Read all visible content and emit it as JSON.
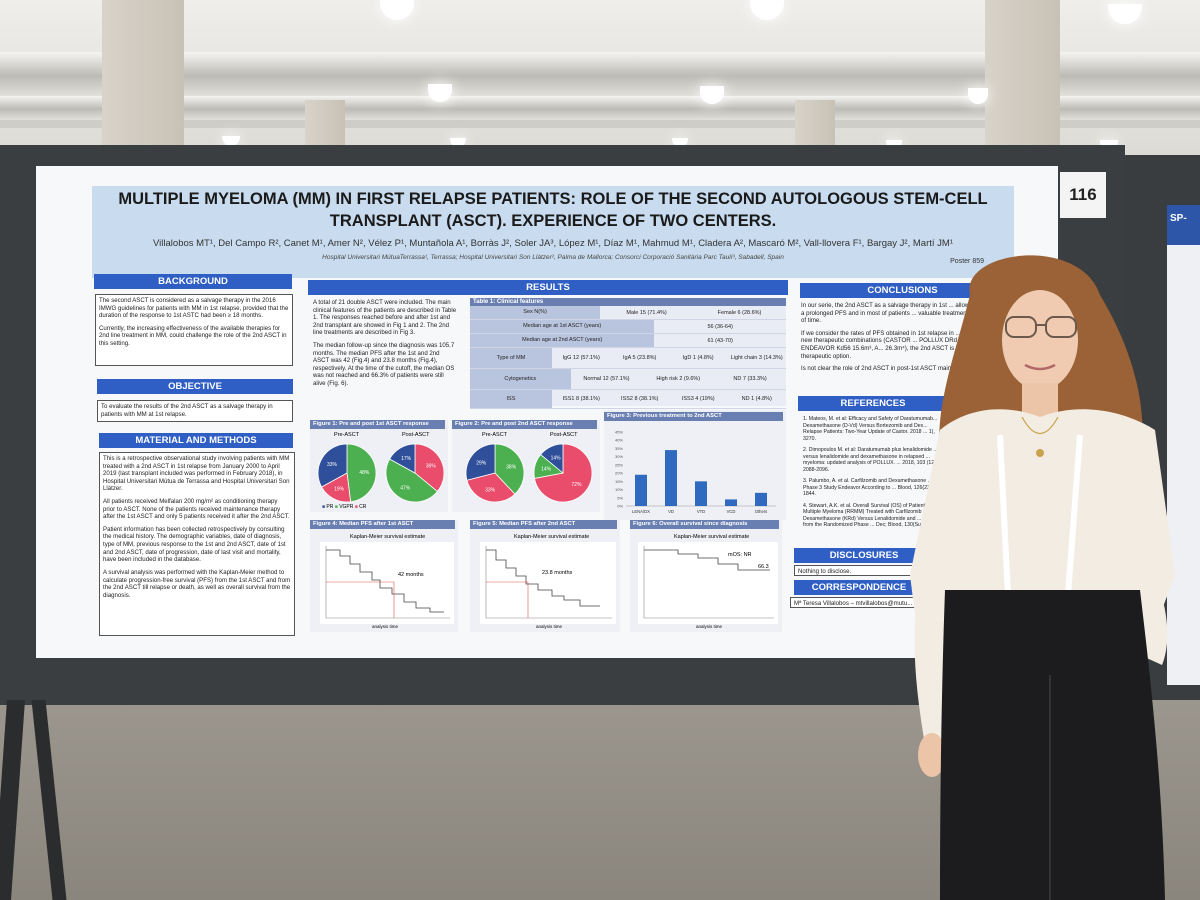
{
  "booth_number": "116",
  "neighbor_poster_code": "SP-",
  "poster": {
    "title_line1": "MULTIPLE MYELOMA (MM) IN FIRST RELAPSE PATIENTS: ROLE OF THE SECOND AUTOLOGOUS STEM-CELL",
    "title_line2": "TRANSPLANT (ASCT). EXPERIENCE OF TWO CENTERS.",
    "authors": "Villalobos MT¹, Del Campo R², Canet M¹, Amer N², Vélez P¹, Muntañola A¹, Borràs J², Soler JA³, López M¹, Díaz M¹, Mahmud M¹, Cladera A², Mascaró M², Vall-llovera F¹, Bargay J², Martí JM¹",
    "affiliations": "Hospital Universitari MútuaTerrassa¹, Terrassa; Hospital Universitari Son Llàtzer², Palma de Mallorca; Consorci Corporació Sanitària Parc Taulí³, Sabadell, Spain",
    "poster_number": "Poster 859",
    "sections": {
      "background": {
        "header": "BACKGROUND",
        "p1": "The second ASCT is considered as a salvage therapy in the 2016 IMWG guidelines for patients with MM in 1st relapse, provided that the duration of the response to 1st ASTC had been ≥ 18 months.",
        "p2": "Currently, the increasing effectiveness of the available therapies for 2nd line treatment in MM, could challenge the role of the 2nd ASCT in this setting."
      },
      "objective": {
        "header": "OBJECTIVE",
        "p1": "To evaluate the results of the 2nd ASCT as a salvage therapy in patients with MM at 1st relapse."
      },
      "methods": {
        "header": "MATERIAL AND METHODS",
        "p1": "This is a retrospective observational study involving patients with MM treated with a 2nd ASCT in 1st relapse from January 2000 to April 2019 (last transplant included was performed in February 2018), in Hospital Universitari Mútua de Terrassa and Hospital Universitari Son Llàtzer.",
        "p2": "All patients received Melfalan 200 mg/m² as conditioning therapy prior to ASCT. None of the patients received maintenance therapy after the 1st ASCT and only 5 patients received it after the 2nd ASCT.",
        "p3": "Patient information has been collected retrospectively by consulting the medical history. The demographic variables, date of diagnosis, type of MM, previous response to the 1st and 2nd ASCT, date of 1st and 2nd ASCT, date of progression, date of last visit and mortality, have been included in the database.",
        "p4": "A survival analysis was performed with the Kaplan-Meier method to calculate progression-free survival (PFS) from the 1st ASCT and from the 2nd ASCT till relapse or death, as well as overall survival from the diagnosis."
      },
      "results": {
        "header": "RESULTS",
        "p1": "A total of 21 double ASCT were included. The main clinical features of the patients are described in Table 1. The responses reached before and after 1st and 2nd transplant are showed in Fig 1 and 2. The 2nd line treatments are described in Fig 3.",
        "p2": "The median follow-up since the diagnosis was 105.7 months. The median PFS after the 1st and 2nd ASCT was 42 (Fig.4) and 23.8 months (Fig.4), respectively. At the time of the cutoff, the median OS was not reached and 66.3% of patients were still alive (Fig. 6)."
      },
      "conclusions": {
        "header": "CONCLUSIONS",
        "p1": "In our serie, the 2nd ASCT as a salvage therapy in 1st ... allows to achieve a prolonged PFS and in most of patients ... valuable treatment-free period of time.",
        "p2": "If we consider the rates of PFS obtained in 1st relapse in ... studies with the new therapeutic combinations (CASTOR ... POLLUX DRd 22.6m², ENDEAVOR Kd56 15.6m³, A... 26.3m⁴), the 2nd ASCT is still a good therapeutic option.",
        "p3": "Is not clear the role of 2nd ASCT in post-1st ASCT maintenance era."
      },
      "references": {
        "header": "REFERENCES",
        "items": [
          "1. Mateos, M. et al: Efficacy and Safety of Daratumumab... Dexamethasone (D-Vd) Versus Bortezomib and Dex... Relapse Patients: Two-Year Update of Castor. 2018 ... 1), 3270.",
          "2. Dimopoulos M. et al: Daratumumab plus lenalidomide ... versus lenalidomide and dexamethasone in relapsed ... myeloma: updated analysis of POLLUX. ... 2018, 103 (12) 2088-2096.",
          "3. Palumbo, A. et al. Carfilzomib and Dexamethasone ... Phase 3 Study Endeavor According to ... Blood, 126(23), 1844.",
          "4. Stewart, A.K. et al. Overall Survival (OS) of Patients ... Multiple Myeloma (RRMM) Treated with Carfilzomib ... Dexamethasone (KRd) Versus Lenalidomide and ... Analysis from the Randomized Phase ... Dec; Blood, 130(Suppl 1), 743."
        ]
      },
      "disclosures": {
        "header": "DISCLOSURES",
        "p1": "Nothing to disclose."
      },
      "correspondence": {
        "header": "CORRESPONDENCE",
        "p1": "Mª Teresa Villalobos – mtvillalobos@mutu..."
      }
    },
    "table1": {
      "title": "Table 1: Clinical features",
      "rows": [
        {
          "label": "Sex N(%)",
          "cells": [
            "Male\n15 (71.4%)",
            "Female\n6 (28.6%)"
          ]
        },
        {
          "label": "Median age at 1st ASCT (years)",
          "cells": [
            "56 (36-64)"
          ]
        },
        {
          "label": "Median age at 2nd ASCT (years)",
          "cells": [
            "61 (43-70)"
          ]
        },
        {
          "label": "Type of MM",
          "cells": [
            "IgG 12 (57.1%)",
            "IgA 5 (23.8%)",
            "IgD 1 (4.8%)",
            "Light chain 3 (14.3%)"
          ]
        },
        {
          "label": "Cytogenetics",
          "cells": [
            "Normal 12 (57.1%)",
            "High risk 2 (9.6%)",
            "ND 7 (33.3%)"
          ]
        },
        {
          "label": "ISS",
          "cells": [
            "ISS1 8 (38.1%)",
            "ISS2 8 (38.1%)",
            "ISS3 4 (19%)",
            "ND 1 (4.8%)"
          ]
        }
      ]
    },
    "figures": {
      "fig1": {
        "title": "Figure 1: Pre and post 1st ASCT response",
        "pre_label": "Pre-ASCT",
        "post_label": "Post-ASCT",
        "pre_pr_label": "48%",
        "pre_cr_label": "33%",
        "post_vgpr_label": "47%"
      },
      "fig2": {
        "title": "Figure 2: Pre and post 2nd ASCT response",
        "pre_label": "Pre-ASCT",
        "post_label": "Post-ASCT",
        "pre_pr_label": "38%",
        "pre_cr_label": "29%",
        "post_cr_label": "14%"
      },
      "legend": {
        "pr": "PR",
        "vgpr": "VGPR",
        "cr": "CR"
      },
      "fig3": {
        "title": "Figure 3: Previous treatment to 2nd ASCT",
        "y_ticks": [
          "45%",
          "40%",
          "35%",
          "30%",
          "25%",
          "20%",
          "15%",
          "10%",
          "5%",
          "0%"
        ]
      },
      "fig4": {
        "title": "Figure 4: Median PFS after 1st ASCT",
        "km_title": "Kaplan-Meier survival estimate",
        "annotation": "42 months",
        "xlabel": "analysis time"
      },
      "fig5": {
        "title": "Figure 5: Median PFS after 2nd ASCT",
        "km_title": "Kaplan-Meier survival estimate",
        "annotation": "23.8 months",
        "xlabel": "analysis time"
      },
      "fig6": {
        "title": "Figure 6: Overall survival since diagnosis",
        "km_title": "Kaplan-Meier survival estimate",
        "annotation": "mOS: NR",
        "annotation2": "66.3",
        "xlabel": "analysis time"
      }
    }
  },
  "chart_data": [
    {
      "type": "bar",
      "title": "Figure 3: Previous treatment to 2nd ASCT",
      "categories": [
        "LENA/DX",
        "VD",
        "VTD",
        "VCD",
        "Others"
      ],
      "values": [
        19,
        34,
        15,
        4,
        8
      ],
      "ylim": [
        0,
        45
      ],
      "color": "#2f6ac0"
    },
    {
      "type": "pie",
      "title": "Figure 1 Pre-ASCT",
      "labels": [
        "PR",
        "VGPR",
        "CR"
      ],
      "values": [
        48,
        19,
        33
      ],
      "colors": [
        "#4cb050",
        "#ea4c6b",
        "#2f4f9a"
      ]
    },
    {
      "type": "pie",
      "title": "Figure 1 Post-ASCT",
      "labels": [
        "PR",
        "VGPR",
        "CR"
      ],
      "values": [
        36,
        47,
        17
      ],
      "colors": [
        "#ea4c6b",
        "#4cb050",
        "#2f4f9a"
      ]
    },
    {
      "type": "pie",
      "title": "Figure 2 Pre-ASCT",
      "labels": [
        "PR",
        "VGPR",
        "CR"
      ],
      "values": [
        38,
        33,
        29
      ],
      "colors": [
        "#4cb050",
        "#ea4c6b",
        "#2f4f9a"
      ]
    },
    {
      "type": "pie",
      "title": "Figure 2 Post-ASCT",
      "labels": [
        "PR",
        "VGPR",
        "CR"
      ],
      "values": [
        72,
        14,
        14
      ],
      "colors": [
        "#ea4c6b",
        "#4cb050",
        "#2f4f9a"
      ]
    }
  ]
}
